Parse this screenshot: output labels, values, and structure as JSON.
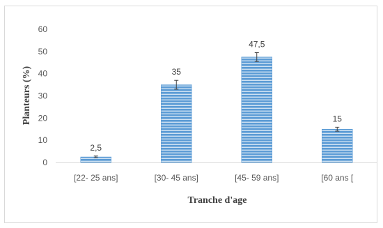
{
  "chart_data": {
    "type": "bar",
    "categories": [
      "[22- 25 ans]",
      "[30- 45 ans]",
      "[45- 59 ans]",
      "[60 ans ["
    ],
    "values": [
      2.5,
      35,
      47.5,
      15
    ],
    "value_labels": [
      "2,5",
      "35",
      "47,5",
      "15"
    ],
    "error": [
      0.4,
      2.0,
      2.0,
      0.9
    ],
    "xlabel": "Tranche d'age",
    "ylabel": "Planteurs (%)",
    "ylim": [
      0,
      60
    ],
    "yticks": [
      0,
      10,
      20,
      30,
      40,
      50,
      60
    ],
    "grid": false,
    "legend": "none",
    "colors": {
      "bar": "#5b9bd5",
      "bar_stripe": "#ffffff",
      "error_bar": "#404040",
      "axis": "#d9d9d9"
    }
  }
}
